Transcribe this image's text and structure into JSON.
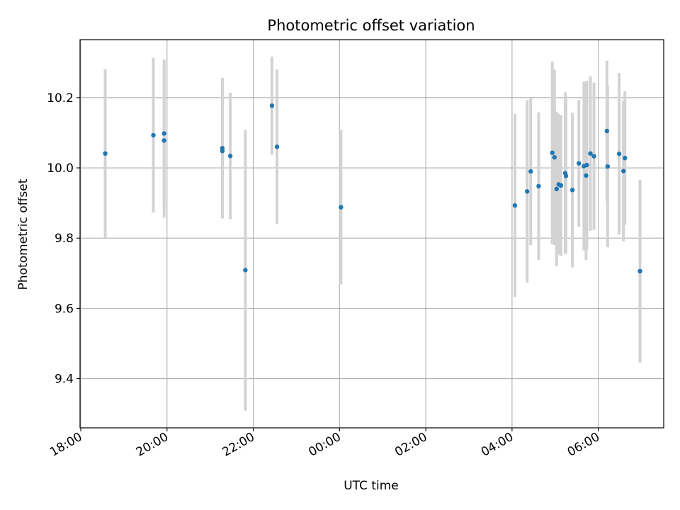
{
  "chart_data": {
    "type": "scatter",
    "title": "Photometric offset variation",
    "xlabel": "UTC time",
    "ylabel": "Photometric offset",
    "grid": true,
    "x_tick_labels": [
      "18:00",
      "20:00",
      "22:00",
      "00:00",
      "02:00",
      "04:00",
      "06:00"
    ],
    "y_tick_labels": [
      "9.4",
      "9.6",
      "9.8",
      "10.0",
      "10.2"
    ],
    "xlim": [
      "17:59",
      "07:31"
    ],
    "ylim": [
      9.26,
      10.365
    ],
    "colors": {
      "points": "#1f77b4",
      "errorbars": "#d3d3d3",
      "grid": "#b0b0b0"
    },
    "points": [
      {
        "t": "18:34",
        "y": 10.041,
        "err": 0.24
      },
      {
        "t": "19:41",
        "y": 10.093,
        "err": 0.22
      },
      {
        "t": "19:56",
        "y": 10.098,
        "err": 0.21
      },
      {
        "t": "19:56",
        "y": 10.078,
        "err": 0.22
      },
      {
        "t": "21:17",
        "y": 10.056,
        "err": 0.2
      },
      {
        "t": "21:17",
        "y": 10.048,
        "err": 0.19
      },
      {
        "t": "21:28",
        "y": 10.034,
        "err": 0.18
      },
      {
        "t": "21:49",
        "y": 9.709,
        "err": 0.4
      },
      {
        "t": "22:26",
        "y": 10.177,
        "err": 0.14
      },
      {
        "t": "22:33",
        "y": 10.06,
        "err": 0.22
      },
      {
        "t": "00:02",
        "y": 9.888,
        "err": 0.22
      },
      {
        "t": "04:04",
        "y": 9.893,
        "err": 0.26
      },
      {
        "t": "04:21",
        "y": 9.933,
        "err": 0.26
      },
      {
        "t": "04:26",
        "y": 9.99,
        "err": 0.21
      },
      {
        "t": "04:37",
        "y": 9.948,
        "err": 0.21
      },
      {
        "t": "04:56",
        "y": 10.043,
        "err": 0.26
      },
      {
        "t": "04:59",
        "y": 10.03,
        "err": 0.25
      },
      {
        "t": "05:02",
        "y": 9.94,
        "err": 0.22
      },
      {
        "t": "05:05",
        "y": 9.953,
        "err": 0.2
      },
      {
        "t": "05:08",
        "y": 9.95,
        "err": 0.2
      },
      {
        "t": "05:14",
        "y": 9.985,
        "err": 0.23
      },
      {
        "t": "05:15",
        "y": 9.977,
        "err": 0.22
      },
      {
        "t": "05:24",
        "y": 9.937,
        "err": 0.22
      },
      {
        "t": "05:33",
        "y": 10.013,
        "err": 0.18
      },
      {
        "t": "05:40",
        "y": 10.005,
        "err": 0.24
      },
      {
        "t": "05:43",
        "y": 9.978,
        "err": 0.24
      },
      {
        "t": "05:44",
        "y": 10.008,
        "err": 0.24
      },
      {
        "t": "05:49",
        "y": 10.041,
        "err": 0.22
      },
      {
        "t": "05:54",
        "y": 10.033,
        "err": 0.21
      },
      {
        "t": "06:12",
        "y": 10.105,
        "err": 0.2
      },
      {
        "t": "06:13",
        "y": 10.004,
        "err": 0.23
      },
      {
        "t": "06:29",
        "y": 10.04,
        "err": 0.23
      },
      {
        "t": "06:35",
        "y": 9.991,
        "err": 0.2
      },
      {
        "t": "06:37",
        "y": 10.028,
        "err": 0.19
      },
      {
        "t": "06:58",
        "y": 9.706,
        "err": 0.26
      }
    ]
  }
}
